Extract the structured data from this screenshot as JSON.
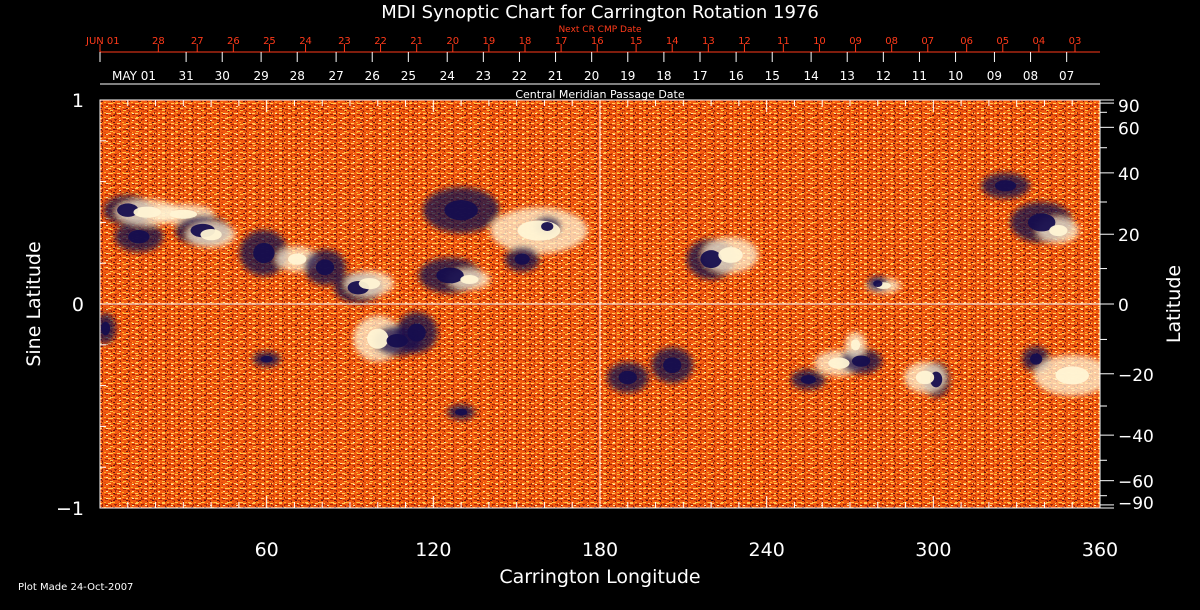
{
  "chart_data": {
    "type": "heatmap",
    "title": "MDI Synoptic Chart for Carrington Rotation 1976",
    "xlabel": "Carrington Longitude",
    "ylabel_left": "Sine Latitude",
    "ylabel_right": "Latitude",
    "top_axis_red_label": "Next CR CMP Date",
    "top_axis_white_label": "Central Meridian Passage Date",
    "footer": "Plot Made 24-Oct-2007",
    "xlim": [
      0,
      360
    ],
    "ylim": [
      -1,
      1
    ],
    "x_ticks": [
      {
        "value": 60,
        "label": "60"
      },
      {
        "value": 120,
        "label": "120"
      },
      {
        "value": 180,
        "label": "180"
      },
      {
        "value": 240,
        "label": "240"
      },
      {
        "value": 300,
        "label": "300"
      },
      {
        "value": 360,
        "label": "360"
      }
    ],
    "y_ticks_left": [
      {
        "value": 1,
        "label": "1"
      },
      {
        "value": 0,
        "label": "0"
      },
      {
        "value": -1,
        "label": "−1"
      }
    ],
    "y_ticks_right": [
      {
        "value": 90,
        "label": "90"
      },
      {
        "value": 60,
        "label": "60"
      },
      {
        "value": 40,
        "label": "40"
      },
      {
        "value": 20,
        "label": "20"
      },
      {
        "value": 0,
        "label": "0"
      },
      {
        "value": -20,
        "label": "−20"
      },
      {
        "value": -40,
        "label": "−40"
      },
      {
        "value": -60,
        "label": "−60"
      },
      {
        "value": -90,
        "label": "−90"
      }
    ],
    "white_dates": [
      {
        "lon": 0,
        "label": "MAY 01"
      },
      {
        "lon": 31,
        "label": "31"
      },
      {
        "lon": 44,
        "label": "30"
      },
      {
        "lon": 58,
        "label": "29"
      },
      {
        "lon": 71,
        "label": "28"
      },
      {
        "lon": 85,
        "label": "27"
      },
      {
        "lon": 98,
        "label": "26"
      },
      {
        "lon": 111,
        "label": "25"
      },
      {
        "lon": 125,
        "label": "24"
      },
      {
        "lon": 138,
        "label": "23"
      },
      {
        "lon": 151,
        "label": "22"
      },
      {
        "lon": 164,
        "label": "21"
      },
      {
        "lon": 177,
        "label": "20"
      },
      {
        "lon": 190,
        "label": "19"
      },
      {
        "lon": 203,
        "label": "18"
      },
      {
        "lon": 216,
        "label": "17"
      },
      {
        "lon": 229,
        "label": "16"
      },
      {
        "lon": 242,
        "label": "15"
      },
      {
        "lon": 256,
        "label": "14"
      },
      {
        "lon": 269,
        "label": "13"
      },
      {
        "lon": 282,
        "label": "12"
      },
      {
        "lon": 295,
        "label": "11"
      },
      {
        "lon": 308,
        "label": "10"
      },
      {
        "lon": 322,
        "label": "09"
      },
      {
        "lon": 335,
        "label": "08"
      },
      {
        "lon": 348,
        "label": "07"
      }
    ],
    "red_dates": [
      {
        "lon": 0,
        "label": "JUN 01"
      },
      {
        "lon": 21,
        "label": "28"
      },
      {
        "lon": 35,
        "label": "27"
      },
      {
        "lon": 48,
        "label": "26"
      },
      {
        "lon": 61,
        "label": "25"
      },
      {
        "lon": 74,
        "label": "24"
      },
      {
        "lon": 88,
        "label": "23"
      },
      {
        "lon": 101,
        "label": "22"
      },
      {
        "lon": 114,
        "label": "21"
      },
      {
        "lon": 127,
        "label": "20"
      },
      {
        "lon": 140,
        "label": "19"
      },
      {
        "lon": 153,
        "label": "18"
      },
      {
        "lon": 166,
        "label": "17"
      },
      {
        "lon": 179,
        "label": "16"
      },
      {
        "lon": 193,
        "label": "15"
      },
      {
        "lon": 206,
        "label": "14"
      },
      {
        "lon": 219,
        "label": "13"
      },
      {
        "lon": 232,
        "label": "12"
      },
      {
        "lon": 246,
        "label": "11"
      },
      {
        "lon": 259,
        "label": "10"
      },
      {
        "lon": 272,
        "label": "09"
      },
      {
        "lon": 285,
        "label": "08"
      },
      {
        "lon": 298,
        "label": "07"
      },
      {
        "lon": 312,
        "label": "06"
      },
      {
        "lon": 325,
        "label": "05"
      },
      {
        "lon": 338,
        "label": "04"
      },
      {
        "lon": 351,
        "label": "03"
      }
    ],
    "colormap": {
      "background": "#f25a10",
      "dark": "#ba2808",
      "negative": "#160e4e",
      "positive": "#fff4d4",
      "bright": "#ffc23a",
      "grid": "#ffffff"
    },
    "regions": [
      {
        "lon": 10,
        "sinlat": 0.46,
        "polarity": "negative",
        "rx": 7,
        "ry": 0.06
      },
      {
        "lon": 14,
        "sinlat": 0.33,
        "polarity": "negative",
        "rx": 7,
        "ry": 0.06
      },
      {
        "lon": 17,
        "sinlat": 0.45,
        "polarity": "positive",
        "rx": 9,
        "ry": 0.05
      },
      {
        "lon": 30,
        "sinlat": 0.44,
        "polarity": "positive",
        "rx": 9,
        "ry": 0.04
      },
      {
        "lon": 37,
        "sinlat": 0.36,
        "polarity": "negative",
        "rx": 8,
        "ry": 0.06
      },
      {
        "lon": 40,
        "sinlat": 0.34,
        "polarity": "positive",
        "rx": 7,
        "ry": 0.05
      },
      {
        "lon": 59,
        "sinlat": 0.25,
        "polarity": "negative",
        "rx": 7,
        "ry": 0.09
      },
      {
        "lon": 71,
        "sinlat": 0.22,
        "polarity": "positive",
        "rx": 6,
        "ry": 0.05
      },
      {
        "lon": 81,
        "sinlat": 0.18,
        "polarity": "negative",
        "rx": 6,
        "ry": 0.07
      },
      {
        "lon": 93,
        "sinlat": 0.08,
        "polarity": "negative",
        "rx": 7,
        "ry": 0.06
      },
      {
        "lon": 97,
        "sinlat": 0.1,
        "polarity": "positive",
        "rx": 7,
        "ry": 0.05
      },
      {
        "lon": 126,
        "sinlat": 0.14,
        "polarity": "negative",
        "rx": 9,
        "ry": 0.07
      },
      {
        "lon": 133,
        "sinlat": 0.12,
        "polarity": "positive",
        "rx": 6,
        "ry": 0.04
      },
      {
        "lon": 130,
        "sinlat": 0.46,
        "polarity": "negative",
        "rx": 11,
        "ry": 0.09
      },
      {
        "lon": 158,
        "sinlat": 0.36,
        "polarity": "positive",
        "rx": 14,
        "ry": 0.09
      },
      {
        "lon": 161,
        "sinlat": 0.38,
        "polarity": "negative",
        "rx": 4,
        "ry": 0.04
      },
      {
        "lon": 152,
        "sinlat": 0.22,
        "polarity": "negative",
        "rx": 5,
        "ry": 0.05
      },
      {
        "lon": 100,
        "sinlat": -0.17,
        "polarity": "positive",
        "rx": 7,
        "ry": 0.09
      },
      {
        "lon": 107,
        "sinlat": -0.18,
        "polarity": "negative",
        "rx": 7,
        "ry": 0.06
      },
      {
        "lon": 114,
        "sinlat": -0.14,
        "polarity": "negative",
        "rx": 6,
        "ry": 0.08
      },
      {
        "lon": 60,
        "sinlat": -0.27,
        "polarity": "negative",
        "rx": 4,
        "ry": 0.03
      },
      {
        "lon": 130,
        "sinlat": -0.53,
        "polarity": "negative",
        "rx": 4,
        "ry": 0.03
      },
      {
        "lon": 220,
        "sinlat": 0.22,
        "polarity": "negative",
        "rx": 7,
        "ry": 0.08
      },
      {
        "lon": 227,
        "sinlat": 0.24,
        "polarity": "positive",
        "rx": 8,
        "ry": 0.07
      },
      {
        "lon": 282,
        "sinlat": 0.09,
        "polarity": "positive",
        "rx": 5,
        "ry": 0.03
      },
      {
        "lon": 280,
        "sinlat": 0.1,
        "polarity": "negative",
        "rx": 3,
        "ry": 0.03
      },
      {
        "lon": 339,
        "sinlat": 0.4,
        "polarity": "negative",
        "rx": 9,
        "ry": 0.08
      },
      {
        "lon": 345,
        "sinlat": 0.36,
        "polarity": "positive",
        "rx": 6,
        "ry": 0.05
      },
      {
        "lon": 326,
        "sinlat": 0.58,
        "polarity": "negative",
        "rx": 7,
        "ry": 0.05
      },
      {
        "lon": 266,
        "sinlat": -0.29,
        "polarity": "positive",
        "rx": 7,
        "ry": 0.05
      },
      {
        "lon": 274,
        "sinlat": -0.28,
        "polarity": "negative",
        "rx": 6,
        "ry": 0.05
      },
      {
        "lon": 272,
        "sinlat": -0.2,
        "polarity": "positive",
        "rx": 3,
        "ry": 0.05
      },
      {
        "lon": 301,
        "sinlat": -0.37,
        "polarity": "negative",
        "rx": 4,
        "ry": 0.07
      },
      {
        "lon": 297,
        "sinlat": -0.36,
        "polarity": "positive",
        "rx": 6,
        "ry": 0.06
      },
      {
        "lon": 337,
        "sinlat": -0.27,
        "polarity": "negative",
        "rx": 4,
        "ry": 0.05
      },
      {
        "lon": 350,
        "sinlat": -0.35,
        "polarity": "positive",
        "rx": 11,
        "ry": 0.08
      },
      {
        "lon": 255,
        "sinlat": -0.37,
        "polarity": "negative",
        "rx": 5,
        "ry": 0.04
      },
      {
        "lon": 206,
        "sinlat": -0.3,
        "polarity": "negative",
        "rx": 6,
        "ry": 0.07
      },
      {
        "lon": 190,
        "sinlat": -0.36,
        "polarity": "negative",
        "rx": 6,
        "ry": 0.06
      },
      {
        "lon": 2,
        "sinlat": -0.12,
        "polarity": "negative",
        "rx": 3,
        "ry": 0.06
      }
    ]
  }
}
